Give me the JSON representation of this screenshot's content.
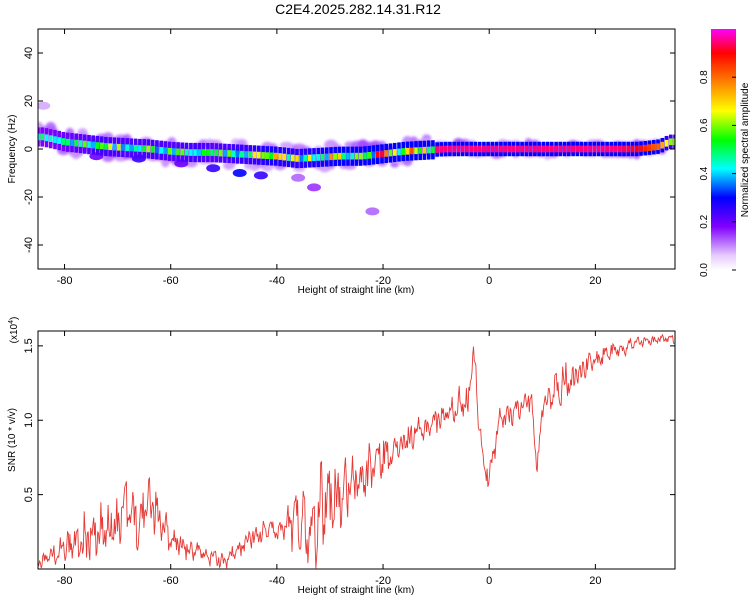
{
  "page": {
    "title": "C2E4.2025.282.14.31.R12"
  },
  "colors": {
    "trace": "#e53935",
    "frame": "#000000"
  },
  "chart_data": [
    {
      "type": "heatmap",
      "title": "C2E4.2025.282.14.31.R12",
      "xlabel": "Height of straight line (km)",
      "ylabel": "Frequency (Hz)",
      "xlim": [
        -85,
        35
      ],
      "ylim": [
        -50,
        50
      ],
      "xticks": [
        -80,
        -60,
        -40,
        -20,
        0,
        20
      ],
      "yticks": [
        -40,
        -20,
        0,
        20,
        40
      ],
      "colorbar": {
        "label": "Normalized spectral amplitude",
        "range": [
          0,
          1
        ],
        "ticks": [
          "0.0",
          "0.2",
          "0.4",
          "0.6",
          "0.8"
        ],
        "tick_values": [
          0.0,
          0.2,
          0.4,
          0.6,
          0.8
        ]
      },
      "ridge": {
        "description": "frequency of strongest spectral response vs height",
        "x": [
          -84,
          -80,
          -76,
          -72,
          -68,
          -64,
          -60,
          -56,
          -52,
          -48,
          -44,
          -40,
          -36,
          -32,
          -28,
          -24,
          -20,
          -16,
          -12,
          -8,
          -4,
          0,
          4,
          8,
          12,
          16,
          20,
          24,
          28,
          32,
          34
        ],
        "y": [
          5,
          3,
          2,
          1,
          0.5,
          0,
          -1,
          -1.5,
          -1.5,
          -2,
          -2.5,
          -3,
          -4,
          -3.5,
          -3,
          -3,
          -2,
          -1,
          -0.5,
          0,
          0,
          0,
          0,
          0,
          0,
          0,
          0,
          0,
          0,
          1,
          3
        ],
        "amplitude": [
          0.45,
          0.5,
          0.55,
          0.6,
          0.55,
          0.6,
          0.55,
          0.6,
          0.55,
          0.6,
          0.65,
          0.7,
          0.65,
          0.7,
          0.75,
          0.8,
          0.9,
          0.95,
          0.95,
          0.95,
          0.95,
          0.95,
          0.95,
          0.95,
          0.95,
          0.95,
          0.95,
          0.95,
          0.9,
          0.8,
          0.6
        ]
      },
      "secondary_blobs": {
        "x": [
          -74,
          -66,
          -58,
          -52,
          -47,
          -43,
          -36,
          -33,
          -22,
          -84
        ],
        "y": [
          -3,
          -4,
          -6,
          -8,
          -10,
          -11,
          -12,
          -16,
          -26,
          18
        ],
        "amplitude": [
          0.2,
          0.25,
          0.2,
          0.25,
          0.3,
          0.25,
          0.12,
          0.15,
          0.12,
          0.08
        ]
      }
    },
    {
      "type": "line",
      "xlabel": "Height of straight line (km)",
      "ylabel": "SNR (10 * v/v)",
      "ylabel_multiplier": "(x10",
      "ylabel_exponent": "4",
      "ylabel_close": ")",
      "xlim": [
        -85,
        35
      ],
      "ylim": [
        0,
        1.6
      ],
      "xticks": [
        -80,
        -60,
        -40,
        -20,
        0,
        20
      ],
      "yticks": [
        "0.5",
        "1.0",
        "1.5"
      ],
      "ytick_values": [
        0.5,
        1.0,
        1.5
      ],
      "series": [
        {
          "name": "SNR",
          "x": [
            -85,
            -80,
            -76,
            -72,
            -70,
            -68,
            -66,
            -64,
            -62,
            -60,
            -56,
            -52,
            -50,
            -48,
            -45,
            -42,
            -40,
            -38,
            -36,
            -34,
            -32,
            -30,
            -28,
            -26,
            -24,
            -22,
            -20,
            -18,
            -16,
            -14,
            -12,
            -10,
            -8,
            -6,
            -4,
            -3,
            -2,
            -1,
            0,
            2,
            4,
            6,
            8,
            9,
            10,
            12,
            14,
            16,
            18,
            20,
            22,
            24,
            26,
            28,
            30,
            32,
            35
          ],
          "y": [
            0.04,
            0.15,
            0.2,
            0.25,
            0.3,
            0.45,
            0.3,
            0.45,
            0.35,
            0.2,
            0.12,
            0.08,
            0.05,
            0.1,
            0.2,
            0.25,
            0.25,
            0.3,
            0.35,
            0.3,
            0.4,
            0.5,
            0.5,
            0.55,
            0.6,
            0.7,
            0.75,
            0.8,
            0.85,
            0.9,
            0.95,
            1.0,
            1.05,
            1.1,
            1.1,
            1.5,
            1.05,
            0.7,
            0.6,
            1.0,
            1.05,
            1.1,
            1.15,
            0.65,
            1.1,
            1.2,
            1.25,
            1.3,
            1.35,
            1.4,
            1.45,
            1.48,
            1.5,
            1.52,
            1.53,
            1.55,
            1.55
          ],
          "noise": [
            0.06,
            0.12,
            0.22,
            0.3,
            0.32,
            0.3,
            0.28,
            0.3,
            0.2,
            0.12,
            0.1,
            0.08,
            0.06,
            0.1,
            0.1,
            0.1,
            0.12,
            0.18,
            0.35,
            0.5,
            0.45,
            0.35,
            0.3,
            0.25,
            0.22,
            0.25,
            0.2,
            0.15,
            0.15,
            0.15,
            0.12,
            0.12,
            0.15,
            0.15,
            0.15,
            0.1,
            0.15,
            0.15,
            0.12,
            0.12,
            0.12,
            0.12,
            0.12,
            0.1,
            0.15,
            0.18,
            0.18,
            0.18,
            0.12,
            0.1,
            0.1,
            0.08,
            0.08,
            0.06,
            0.05,
            0.04,
            0.04
          ]
        }
      ]
    }
  ]
}
